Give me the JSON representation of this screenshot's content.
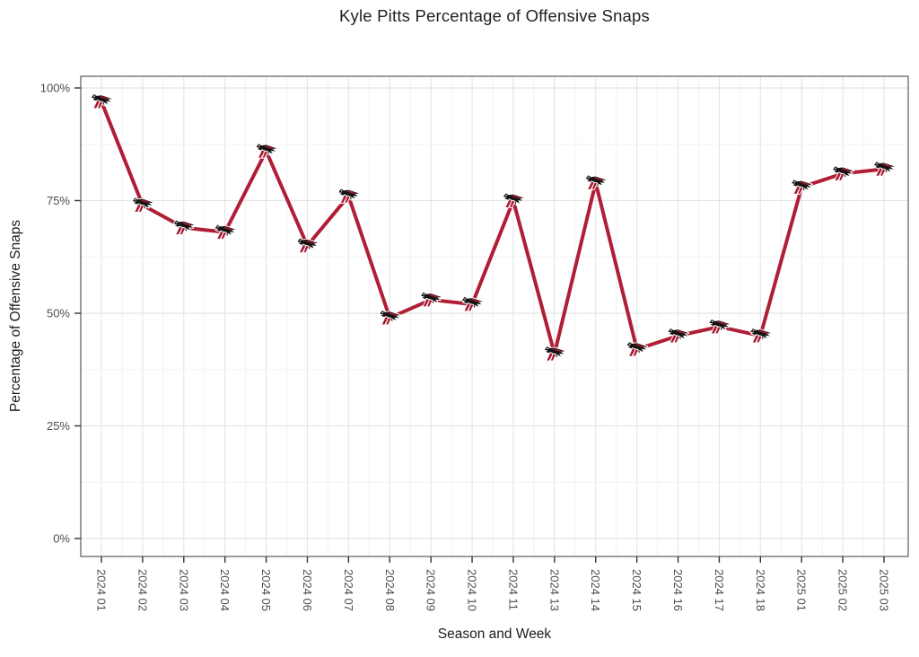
{
  "title": "Kyle Pitts Percentage of Offensive Snaps",
  "chart_data": {
    "type": "line",
    "title": "Kyle Pitts Percentage of Offensive Snaps",
    "xlabel": "Season and Week",
    "ylabel": "Percentage of Offensive Snaps",
    "categories": [
      "2024 01",
      "2024 02",
      "2024 03",
      "2024 04",
      "2024 05",
      "2024 06",
      "2024 07",
      "2024 08",
      "2024 09",
      "2024 10",
      "2024 11",
      "2024 13",
      "2024 14",
      "2024 15",
      "2024 16",
      "2024 17",
      "2024 18",
      "2025 01",
      "2025 02",
      "2025 03"
    ],
    "series": [
      {
        "name": "Kyle Pitts offensive snap percentage",
        "values": [
          97,
          74,
          69,
          68,
          86,
          65,
          76,
          49,
          53,
          52,
          75,
          41,
          79,
          42,
          45,
          47,
          45,
          78,
          81,
          82
        ]
      }
    ],
    "value_unit": "%",
    "ylim": [
      0,
      100
    ],
    "yticks": [
      0,
      25,
      50,
      75,
      100
    ],
    "ytick_labels": [
      "0%",
      "25%",
      "50%",
      "75%",
      "100%"
    ],
    "grid": "major-and-minor",
    "legend": "none",
    "marker": "atlanta-falcons-logo",
    "colors": {
      "line": "#B01E35",
      "logo_black": "#141414",
      "logo_red": "#A71930",
      "grid_major": "#e4e4e4",
      "grid_minor": "#f2f2f2",
      "axis_text": "#4d4d4d",
      "tick_mark": "#333333",
      "panel_border": "#595959",
      "title_text": "#212121"
    }
  }
}
